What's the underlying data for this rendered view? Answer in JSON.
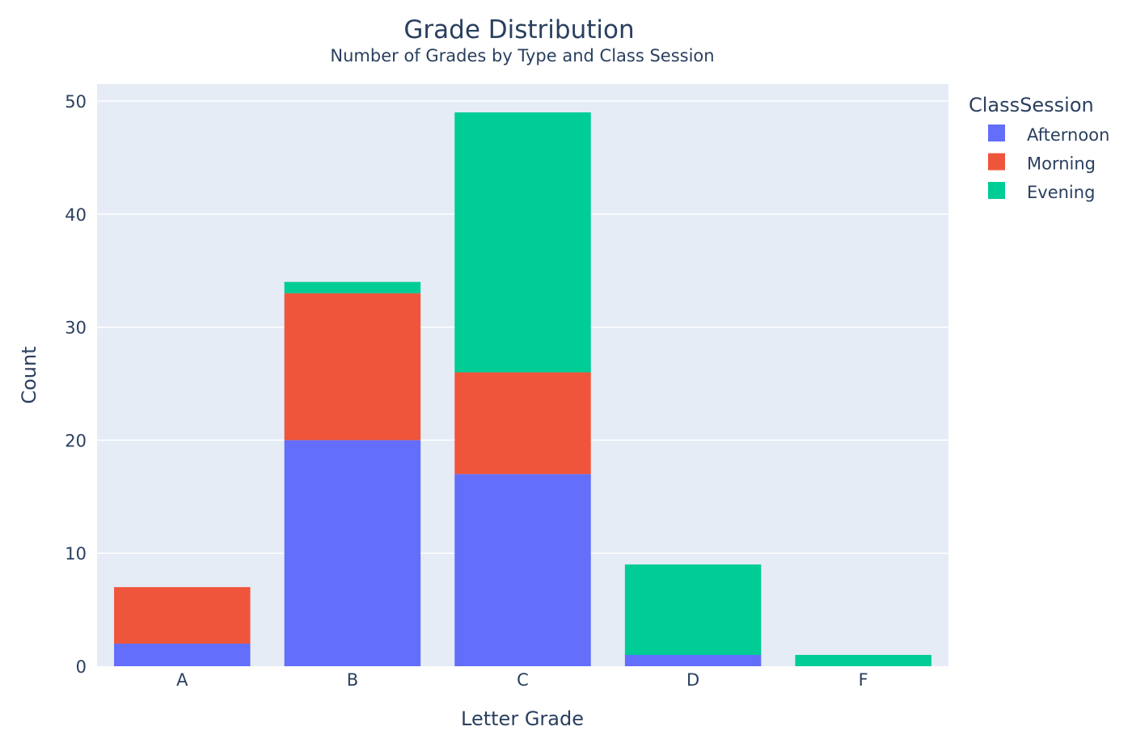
{
  "chart_data": {
    "type": "bar",
    "barmode": "stack",
    "title": "Grade Distribution",
    "subtitle": "Number of Grades by Type and Class Session",
    "xlabel": "Letter Grade",
    "ylabel": "Count",
    "categories": [
      "A",
      "B",
      "C",
      "D",
      "F"
    ],
    "ylim": [
      0,
      52
    ],
    "yticks": [
      0,
      10,
      20,
      30,
      40,
      50
    ],
    "grid": true,
    "background": "#e5ecf6",
    "legend": {
      "title": "ClassSession",
      "position": "top-right"
    },
    "series": [
      {
        "name": "Afternoon",
        "color": "#636efa",
        "values": [
          2,
          20,
          17,
          1,
          0
        ]
      },
      {
        "name": "Morning",
        "color": "#ef553b",
        "values": [
          5,
          13,
          9,
          0,
          0
        ]
      },
      {
        "name": "Evening",
        "color": "#00cc96",
        "values": [
          0,
          1,
          23,
          8,
          1
        ]
      }
    ]
  }
}
